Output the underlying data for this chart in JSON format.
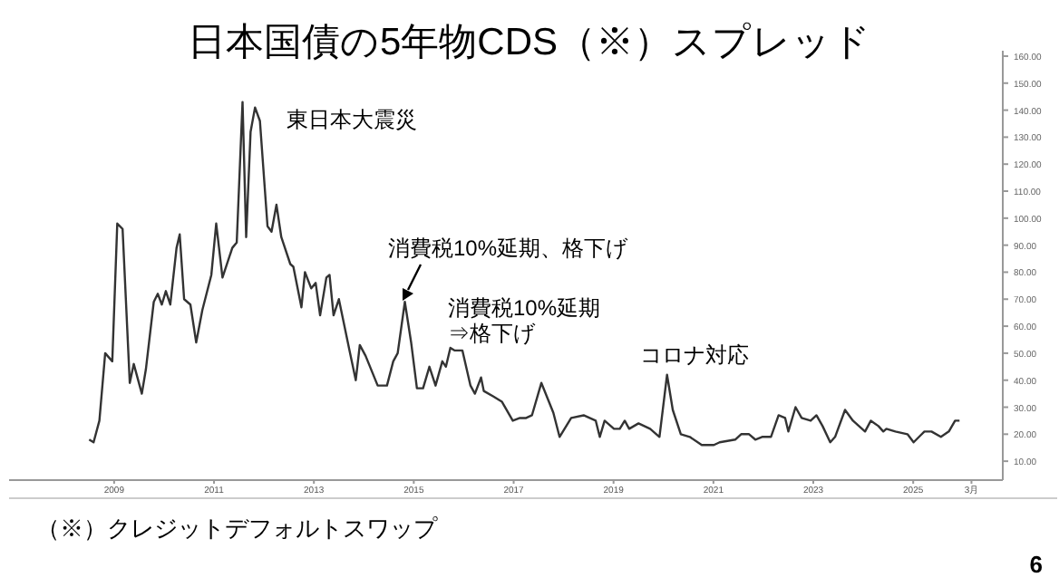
{
  "chart_data": {
    "type": "line",
    "title": "日本国債の5年物CDS（※）スプレッド",
    "x": [
      "2008-07-01",
      "2008-08-03",
      "2008-09-15",
      "2008-10-27",
      "2008-12-18",
      "2009-01-24",
      "2009-03-02",
      "2009-04-24",
      "2009-05-23",
      "2009-07-21",
      "2009-08-20",
      "2009-10-17",
      "2009-11-16",
      "2009-12-15",
      "2010-01-14",
      "2010-02-16",
      "2010-04-01",
      "2010-04-24",
      "2010-05-26",
      "2010-07-11",
      "2010-08-23",
      "2010-10-07",
      "2010-12-12",
      "2011-01-17",
      "2011-03-02",
      "2011-05-13",
      "2011-06-15",
      "2011-07-27",
      "2011-08-23",
      "2011-09-25",
      "2011-10-27",
      "2011-12-02",
      "2012-01-27",
      "2012-02-26",
      "2012-04-01",
      "2012-05-06",
      "2012-07-11",
      "2012-08-03",
      "2012-10-01",
      "2012-10-27",
      "2012-12-12",
      "2013-01-14",
      "2013-02-16",
      "2013-04-01",
      "2013-04-24",
      "2013-05-23",
      "2013-07-01",
      "2013-09-18",
      "2013-11-03",
      "2013-12-02",
      "2014-01-14",
      "2014-04-11",
      "2014-06-18",
      "2014-08-03",
      "2014-09-05",
      "2014-10-27",
      "2014-12-12",
      "2015-01-24",
      "2015-03-08",
      "2015-04-24",
      "2015-06-08",
      "2015-07-27",
      "2015-08-23",
      "2015-09-25",
      "2015-10-27",
      "2015-12-22",
      "2016-02-20",
      "2016-03-22",
      "2016-05-06",
      "2016-05-26",
      "2016-08-03",
      "2016-10-07",
      "2016-12-25",
      "2017-02-16",
      "2017-04-01",
      "2017-05-13",
      "2017-07-21",
      "2017-10-17",
      "2017-12-02",
      "2018-02-26",
      "2018-05-26",
      "2018-08-23",
      "2018-09-22",
      "2018-10-27",
      "2019-01-04",
      "2019-02-16",
      "2019-03-22",
      "2019-04-24",
      "2019-07-01",
      "2019-09-25",
      "2019-12-02",
      "2020-01-27",
      "2020-03-08",
      "2020-05-06",
      "2020-07-11",
      "2020-10-07",
      "2021-01-04",
      "2021-02-16",
      "2021-06-08",
      "2021-07-21",
      "2021-09-18",
      "2021-11-03",
      "2021-12-22",
      "2022-02-26",
      "2022-04-21",
      "2022-06-08",
      "2022-07-01",
      "2022-08-23",
      "2022-10-07",
      "2022-12-12",
      "2023-01-24",
      "2023-03-08",
      "2023-05-03",
      "2023-06-08",
      "2023-08-20",
      "2023-10-17",
      "2024-01-14",
      "2024-02-26",
      "2024-04-21",
      "2024-05-26",
      "2024-06-18",
      "2024-08-23",
      "2024-11-20",
      "2025-01-04",
      "2025-03-22",
      "2025-05-13",
      "2025-07-21",
      "2025-09-18",
      "2025-11-03",
      "2025-12-05"
    ],
    "series": [
      {
        "color": "#333333",
        "values": [
          18,
          17,
          25,
          50,
          47,
          98,
          96,
          39,
          46,
          35,
          44,
          69,
          72,
          68,
          73,
          68,
          89,
          94,
          70,
          68,
          54,
          66,
          79,
          98,
          78,
          89,
          91,
          143,
          93,
          132,
          141,
          136,
          97,
          95,
          105,
          93,
          83,
          82,
          67,
          80,
          74,
          76,
          64,
          78,
          79,
          64,
          70,
          51,
          40,
          53,
          49,
          38,
          38,
          47,
          50,
          69,
          54,
          37,
          37,
          45,
          38,
          47,
          45,
          52,
          51,
          51,
          38,
          35,
          41,
          36,
          34,
          32,
          25,
          26,
          26,
          27,
          39,
          28,
          19,
          26,
          27,
          25,
          19,
          25,
          22,
          22,
          25,
          22,
          24,
          22,
          19,
          42,
          29,
          20,
          19,
          16,
          16,
          17,
          18,
          20,
          20,
          18,
          19,
          19,
          27,
          26,
          21,
          30,
          26,
          25,
          27,
          23,
          17,
          19,
          29,
          25,
          21,
          25,
          23,
          21,
          22,
          21,
          20,
          17,
          21,
          21,
          19,
          21,
          25,
          25
        ]
      }
    ],
    "xlim": [
      "2006-11-24",
      "2026-10-17"
    ],
    "ylim": [
      3,
      162
    ],
    "xticks": [
      "2009",
      "2011",
      "2013",
      "2015",
      "2017",
      "2019",
      "2021",
      "2023",
      "2025",
      {
        "value": "2026-03",
        "label": "3月"
      }
    ],
    "yticks": [
      {
        "value": 10,
        "label": "10.00"
      },
      {
        "value": 20,
        "label": "20.00"
      },
      {
        "value": 30,
        "label": "30.00"
      },
      {
        "value": 40,
        "label": "40.00"
      },
      {
        "value": 50,
        "label": "50.00"
      },
      {
        "value": 60,
        "label": "60.00"
      },
      {
        "value": 70,
        "label": "70.00"
      },
      {
        "value": 80,
        "label": "80.00"
      },
      {
        "value": 90,
        "label": "90.00"
      },
      {
        "value": 100,
        "label": "100.00"
      },
      {
        "value": 110,
        "label": "110.00"
      },
      {
        "value": 120,
        "label": "120.00"
      },
      {
        "value": 130,
        "label": "130.00"
      },
      {
        "value": 140,
        "label": "140.00"
      },
      {
        "value": 150,
        "label": "150.00"
      },
      {
        "value": 160,
        "label": "160.00"
      }
    ],
    "grid": false,
    "annotations": [
      "東日本大震災",
      "消費税10%延期、格下げ",
      "消費税10%延期\n⇒格下げ",
      "コロナ対応",
      "（※）クレジットデフォルトスワップ",
      "6"
    ]
  }
}
